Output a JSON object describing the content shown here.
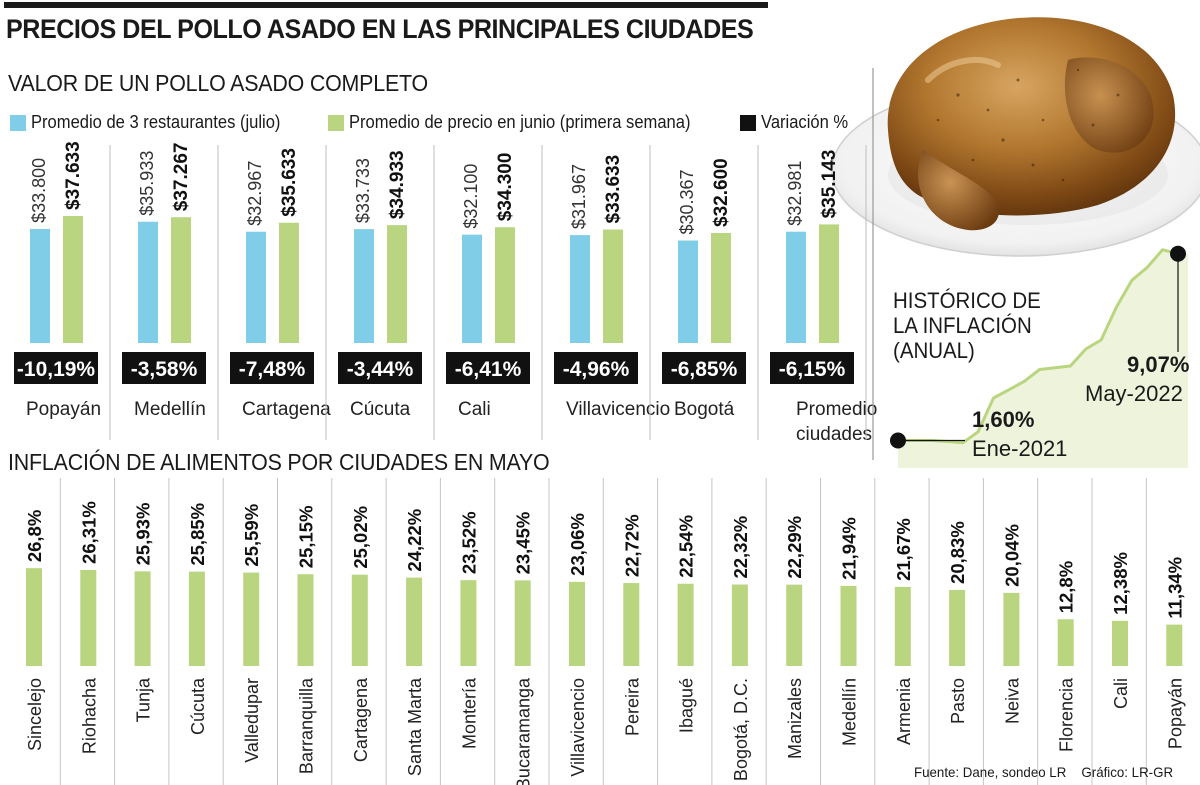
{
  "header": {
    "title": "PRECIOS DEL POLLO ASADO EN LAS PRINCIPALES CIUDADES"
  },
  "colors": {
    "restaurants": "#7fcde6",
    "june": "#b9d57f",
    "variation": "#111111",
    "food_inflation": "#b9d57f",
    "inflation_area": "#eef4dc",
    "inflation_line": "#b9d57f"
  },
  "chart_data": [
    {
      "type": "bar",
      "title": "VALOR DE UN POLLO ASADO COMPLETO",
      "legend_placement": "top",
      "categories": [
        "Popayán",
        "Medellín",
        "Cartagena",
        "Cúcuta",
        "Cali",
        "Villavicencio",
        "Bogotá",
        "Promedio ciudades"
      ],
      "series": [
        {
          "name": "Promedio de 3 restaurantes (julio)",
          "values": [
            33800,
            35933,
            32967,
            33733,
            32100,
            31967,
            30367,
            32981
          ],
          "labels": [
            "$33.800",
            "$35.933",
            "$32.967",
            "$33.733",
            "$32.100",
            "$31.967",
            "$30.367",
            "$32.981"
          ]
        },
        {
          "name": "Promedio de precio en junio (primera semana)",
          "values": [
            37633,
            37267,
            35633,
            34933,
            34300,
            33633,
            32600,
            35143
          ],
          "labels": [
            "$37.633",
            "$37.267",
            "$35.633",
            "$34.933",
            "$34.300",
            "$33.633",
            "$32.600",
            "$35.143"
          ]
        },
        {
          "name": "Variación %",
          "values": [
            -10.19,
            -3.58,
            -7.48,
            -3.44,
            -6.41,
            -4.96,
            -6.85,
            -6.15
          ],
          "labels": [
            "-10,19%",
            "-3,58%",
            "-7,48%",
            "-3,44%",
            "-6,41%",
            "-4,96%",
            "-6,85%",
            "-6,15%"
          ]
        }
      ],
      "category_labels": [
        [
          "Popayán"
        ],
        [
          "Medellín"
        ],
        [
          "Cartagena"
        ],
        [
          "Cúcuta"
        ],
        [
          "Cali"
        ],
        [
          "Villavicencio"
        ],
        [
          "Bogotá"
        ],
        [
          "Promedio",
          "ciudades"
        ]
      ],
      "ylim": [
        0,
        40000
      ]
    },
    {
      "type": "bar",
      "title": "INFLACIÓN DE ALIMENTOS POR CIUDADES EN MAYO",
      "categories": [
        "Sincelejo",
        "Riohacha",
        "Tunja",
        "Cúcuta",
        "Valledupar",
        "Barranquilla",
        "Cartagena",
        "Santa Marta",
        "Montería",
        "Bucaramanga",
        "Villavicencio",
        "Pereira",
        "Ibagué",
        "Bogotá, D.C.",
        "Manizales",
        "Medellín",
        "Armenia",
        "Pasto",
        "Neiva",
        "Florencia",
        "Cali",
        "Popayán"
      ],
      "values": [
        26.8,
        26.31,
        25.93,
        25.85,
        25.59,
        25.15,
        25.02,
        24.22,
        23.52,
        23.45,
        23.06,
        22.72,
        22.54,
        22.32,
        22.29,
        21.94,
        21.67,
        20.83,
        20.04,
        12.8,
        12.38,
        11.34
      ],
      "labels": [
        "26,8%",
        "26,31%",
        "25,93%",
        "25,85%",
        "25,59%",
        "25,15%",
        "25,02%",
        "24,22%",
        "23,52%",
        "23,45%",
        "23,06%",
        "22,72%",
        "22,54%",
        "22,32%",
        "22,29%",
        "21,94%",
        "21,67%",
        "20,83%",
        "20,04%",
        "12,8%",
        "12,38%",
        "11,34%"
      ],
      "ylim": [
        0,
        30
      ]
    },
    {
      "type": "area",
      "title_lines": [
        "HISTÓRICO DE",
        "LA INFLACIÓN",
        "(ANUAL)"
      ],
      "x": [
        "2021-01",
        "2021-02",
        "2021-03",
        "2021-04",
        "2021-05",
        "2021-06",
        "2021-07",
        "2021-08",
        "2021-09",
        "2021-10",
        "2021-11",
        "2021-12",
        "2022-01",
        "2022-02",
        "2022-03",
        "2022-04",
        "2022-05"
      ],
      "values": [
        1.6,
        1.56,
        1.51,
        1.95,
        3.3,
        3.63,
        3.97,
        4.44,
        4.51,
        4.58,
        5.26,
        5.62,
        6.94,
        8.01,
        8.53,
        9.23,
        9.07
      ],
      "annotations": [
        {
          "value": "1,60%",
          "date": "Ene-2021"
        },
        {
          "value": "9,07%",
          "date": "May-2022"
        }
      ]
    }
  ],
  "footer": {
    "source": "Fuente: Dane, sondeo LR",
    "credit": "Gráfico: LR-GR"
  }
}
